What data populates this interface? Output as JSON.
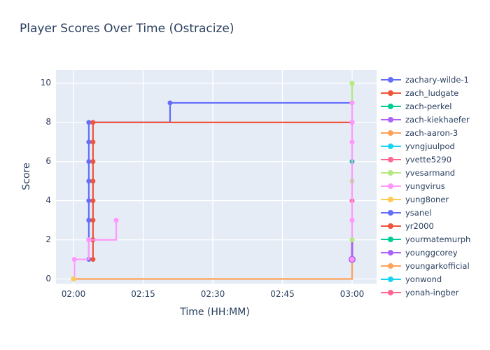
{
  "title": "Player Scores Over Time (Ostracize)",
  "x_axis": {
    "label": "Time (HH:MM)",
    "ticks": [
      "02:00",
      "02:15",
      "02:30",
      "02:45",
      "03:00"
    ],
    "tick_minutes": [
      0,
      15,
      30,
      45,
      60
    ]
  },
  "y_axis": {
    "label": "Score",
    "ticks": [
      0,
      2,
      4,
      6,
      8,
      10
    ],
    "range": [
      0,
      10
    ]
  },
  "colors": {
    "paper": "#ffffff",
    "plot_bg": "#e5ecf6",
    "grid": "#ffffff",
    "text": "#2a3f5f"
  },
  "legend": {
    "items": [
      {
        "label": "zachary-wilde-1",
        "color": "#636EFA"
      },
      {
        "label": "zach_ludgate",
        "color": "#EF553B"
      },
      {
        "label": "zach-perkel",
        "color": "#00CC96"
      },
      {
        "label": "zach-kiekhaefer",
        "color": "#AB63FA"
      },
      {
        "label": "zach-aaron-3",
        "color": "#FFA15A"
      },
      {
        "label": "yvngjuulpod",
        "color": "#19D3F3"
      },
      {
        "label": "yvette5290",
        "color": "#FF6692"
      },
      {
        "label": "yvesarmand",
        "color": "#B6E880"
      },
      {
        "label": "yungvirus",
        "color": "#FF97FF"
      },
      {
        "label": "yung8oner",
        "color": "#FECB52"
      },
      {
        "label": "ysanel",
        "color": "#636EFA"
      },
      {
        "label": "yr2000",
        "color": "#EF553B"
      },
      {
        "label": "yourmatemurph",
        "color": "#00CC96"
      },
      {
        "label": "younggcorey",
        "color": "#AB63FA"
      },
      {
        "label": "youngarkofficial",
        "color": "#FFA15A"
      },
      {
        "label": "yonwond",
        "color": "#19D3F3"
      },
      {
        "label": "yonah-ingber",
        "color": "#FF6692"
      }
    ]
  },
  "chart_data": {
    "type": "line",
    "line_shape": "hv",
    "title": "Player Scores Over Time (Ostracize)",
    "xlabel": "Time (HH:MM)",
    "ylabel": "Score",
    "x_unit": "minutes after 02:00",
    "x_range_minutes": [
      0,
      60
    ],
    "ylim": [
      0,
      10
    ],
    "grid": true,
    "legend_position": "right",
    "series": [
      {
        "name": "zachary-wilde-1",
        "color": "#636EFA",
        "points": [
          [
            3.3,
            1
          ],
          [
            3.3,
            2
          ],
          [
            3.3,
            3
          ],
          [
            3.3,
            4
          ],
          [
            3.3,
            5
          ],
          [
            3.3,
            6
          ],
          [
            3.3,
            7
          ],
          [
            3.3,
            8
          ],
          [
            20.8,
            9
          ],
          [
            60,
            9
          ]
        ]
      },
      {
        "name": "zach_ludgate",
        "color": "#EF553B",
        "points": [
          [
            4.2,
            1
          ],
          [
            4.2,
            2
          ],
          [
            4.2,
            3
          ],
          [
            4.2,
            4
          ],
          [
            4.2,
            5
          ],
          [
            4.2,
            6
          ],
          [
            4.2,
            7
          ],
          [
            4.2,
            8
          ],
          [
            60,
            8
          ]
        ]
      },
      {
        "name": "yvesarmand",
        "color": "#B6E880",
        "points": [
          [
            60,
            9
          ],
          [
            60,
            10
          ]
        ]
      },
      {
        "name": "youngarkofficial",
        "color": "#FFA15A",
        "points": [
          [
            0,
            0
          ],
          [
            60,
            1
          ]
        ]
      },
      {
        "name": "yungvirus",
        "color": "#FF97FF",
        "points": [
          [
            0,
            0
          ],
          [
            0.2,
            1
          ],
          [
            3.3,
            2
          ],
          [
            9.2,
            3
          ]
        ]
      },
      {
        "name": "yung8oner",
        "color": "#FECB52",
        "points": [
          [
            0,
            0
          ]
        ]
      }
    ],
    "final_scores_at_end_column": {
      "time": "03:00",
      "markers": [
        {
          "score": 10,
          "color": "#B6E880",
          "layer": "top"
        },
        {
          "score": 9,
          "color": "#FF97FF",
          "layer": "top"
        },
        {
          "score": 8,
          "color": "#FF97FF",
          "layer": "top"
        },
        {
          "score": 7,
          "color": "#FF97FF",
          "layer": "top"
        },
        {
          "score": 6,
          "color": "#00CC96",
          "layer": "under"
        },
        {
          "score": 5,
          "color": "#B6E880",
          "layer": "under"
        },
        {
          "score": 4,
          "color": "#FF6692",
          "layer": "under"
        },
        {
          "score": 3,
          "color": "#FF97FF",
          "layer": "top"
        },
        {
          "score": 2,
          "color": "#B6E880",
          "layer": "top"
        },
        {
          "score": 1,
          "color": "#FF97FF",
          "layer": "top",
          "halo_color": "#AB63FA"
        }
      ],
      "segments": [
        {
          "from": 1,
          "to": 2,
          "color": "#AB63FA",
          "width": 3
        },
        {
          "from": 2,
          "to": 9,
          "color": "#FF97FF",
          "width": 2.2
        },
        {
          "from": 9,
          "to": 10,
          "color": "#B6E880",
          "width": 2.2
        }
      ]
    }
  }
}
